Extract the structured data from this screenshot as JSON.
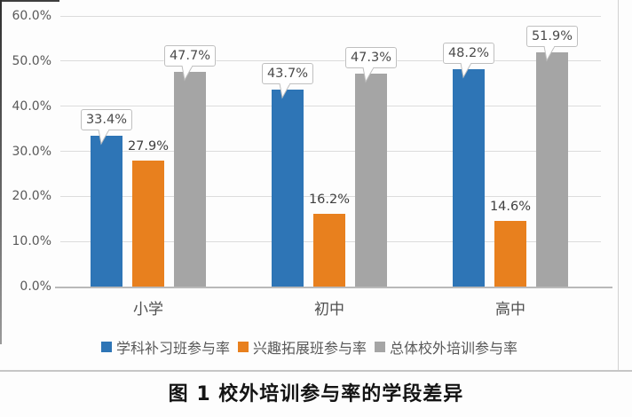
{
  "caption": {
    "text": "图 1  校外培训参与率的学段差异"
  },
  "chart_data": {
    "type": "bar",
    "title": "校外培训参与率的学段差异",
    "categories": [
      "小学",
      "初中",
      "高中"
    ],
    "series": [
      {
        "name": "学科补习班参与率",
        "color": "#2e75b6",
        "values": [
          33.4,
          43.7,
          48.2
        ],
        "labels": [
          "33.4%",
          "43.7%",
          "48.2%"
        ],
        "label_style": "callout"
      },
      {
        "name": "兴趣拓展班参与率",
        "color": "#e8801e",
        "values": [
          27.9,
          16.2,
          14.6
        ],
        "labels": [
          "27.9%",
          "16.2%",
          "14.6%"
        ],
        "label_style": "plain"
      },
      {
        "name": "总体校外培训参与率",
        "color": "#a5a5a5",
        "values": [
          47.7,
          47.3,
          51.9
        ],
        "labels": [
          "47.7%",
          "47.3%",
          "51.9%"
        ],
        "label_style": "callout"
      }
    ],
    "y_axis": {
      "min": 0,
      "max": 60,
      "step": 10,
      "tick_labels": [
        "0.0%",
        "10.0%",
        "20.0%",
        "30.0%",
        "40.0%",
        "50.0%",
        "60.0%"
      ]
    },
    "xlabel": "",
    "ylabel": "",
    "grid": true,
    "legend_position": "bottom"
  },
  "colors": {
    "series_blue": "#2e75b6",
    "series_orange": "#e8801e",
    "series_gray": "#a5a5a5",
    "gridline": "#dcdcdc",
    "axis_baseline": "#b9b9b9",
    "axis_text": "#595959",
    "callout_border": "#bfbfbf",
    "callout_text": "#4a4a4a",
    "caption_text": "#141414"
  }
}
